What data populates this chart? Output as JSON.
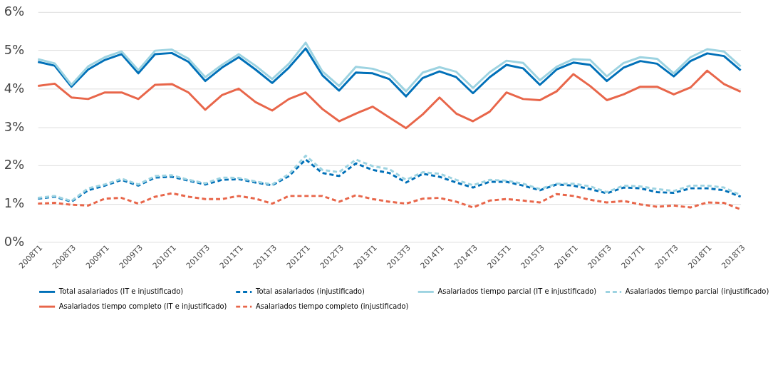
{
  "chart_data": {
    "type": "line",
    "categories": [
      "2008T1",
      null,
      "2008T3",
      null,
      "2009T1",
      null,
      "2009T3",
      null,
      "2010T1",
      null,
      "2010T3",
      null,
      "2011T1",
      null,
      "2011T3",
      null,
      "2012T1",
      null,
      "2012T3",
      null,
      "2013T1",
      null,
      "2013T3",
      null,
      "2014T1",
      null,
      "2014T3",
      null,
      "2015T1",
      null,
      "2015T3",
      null,
      "2016T1",
      null,
      "2016T3",
      null,
      "2017T1",
      null,
      "2017T3",
      null,
      "2018T1",
      null,
      "2018T3"
    ],
    "series": [
      {
        "name": "Total asalariados (IT e injustificado)",
        "color": "#0070b8",
        "line_style": "solid",
        "values": [
          4.7,
          4.6,
          4.05,
          4.5,
          4.75,
          4.9,
          4.4,
          4.9,
          4.93,
          4.7,
          4.2,
          4.55,
          4.82,
          4.5,
          4.15,
          4.55,
          5.05,
          4.35,
          3.95,
          4.42,
          4.4,
          4.25,
          3.8,
          4.28,
          4.45,
          4.3,
          3.88,
          4.3,
          4.62,
          4.53,
          4.1,
          4.5,
          4.68,
          4.62,
          4.2,
          4.55,
          4.72,
          4.65,
          4.32,
          4.72,
          4.92,
          4.85,
          4.48
        ]
      },
      {
        "name": "Total asalariados (injustificado)",
        "color": "#0070b8",
        "line_style": "dashed",
        "values": [
          1.13,
          1.18,
          1.05,
          1.35,
          1.47,
          1.62,
          1.47,
          1.68,
          1.7,
          1.6,
          1.5,
          1.62,
          1.64,
          1.55,
          1.48,
          1.72,
          2.15,
          1.8,
          1.72,
          2.05,
          1.88,
          1.8,
          1.55,
          1.78,
          1.7,
          1.55,
          1.42,
          1.57,
          1.57,
          1.47,
          1.35,
          1.5,
          1.47,
          1.38,
          1.27,
          1.42,
          1.4,
          1.3,
          1.28,
          1.4,
          1.4,
          1.35,
          1.18
        ]
      },
      {
        "name": "Asalariados tiempo parcial (IT e injustificado)",
        "color": "#9dd3e1",
        "line_style": "solid",
        "values": [
          4.77,
          4.66,
          4.1,
          4.58,
          4.82,
          4.97,
          4.48,
          4.99,
          5.02,
          4.78,
          4.3,
          4.62,
          4.9,
          4.6,
          4.25,
          4.65,
          5.2,
          4.45,
          4.07,
          4.57,
          4.52,
          4.38,
          3.93,
          4.42,
          4.56,
          4.44,
          4.02,
          4.43,
          4.73,
          4.67,
          4.22,
          4.57,
          4.77,
          4.75,
          4.32,
          4.67,
          4.82,
          4.78,
          4.4,
          4.82,
          5.03,
          4.97,
          4.58
        ]
      },
      {
        "name": "Asalariados tiempo parcial (injustificado)",
        "color": "#9dd3e1",
        "line_style": "dashed",
        "values": [
          1.15,
          1.2,
          1.07,
          1.4,
          1.5,
          1.65,
          1.5,
          1.72,
          1.74,
          1.62,
          1.53,
          1.68,
          1.67,
          1.58,
          1.5,
          1.77,
          2.25,
          1.88,
          1.82,
          2.15,
          1.98,
          1.9,
          1.62,
          1.82,
          1.78,
          1.62,
          1.48,
          1.62,
          1.6,
          1.52,
          1.38,
          1.52,
          1.52,
          1.45,
          1.3,
          1.47,
          1.45,
          1.38,
          1.33,
          1.47,
          1.47,
          1.42,
          1.22
        ]
      },
      {
        "name": "Asalariados tiempo completo (IT e injustificado)",
        "color": "#e8664a",
        "line_style": "solid",
        "values": [
          4.07,
          4.13,
          3.77,
          3.73,
          3.9,
          3.9,
          3.73,
          4.1,
          4.12,
          3.9,
          3.45,
          3.83,
          4.0,
          3.65,
          3.43,
          3.73,
          3.9,
          3.47,
          3.15,
          3.35,
          3.53,
          3.25,
          2.97,
          3.33,
          3.77,
          3.35,
          3.15,
          3.4,
          3.9,
          3.73,
          3.7,
          3.93,
          4.38,
          4.07,
          3.7,
          3.85,
          4.05,
          4.05,
          3.85,
          4.03,
          4.47,
          4.12,
          3.92
        ]
      },
      {
        "name": "Asalariados tiempo completo (injustificado)",
        "color": "#e8664a",
        "line_style": "dashed",
        "values": [
          1.0,
          1.02,
          0.97,
          0.95,
          1.13,
          1.15,
          1.0,
          1.18,
          1.27,
          1.18,
          1.12,
          1.12,
          1.2,
          1.13,
          1.0,
          1.2,
          1.2,
          1.2,
          1.05,
          1.22,
          1.12,
          1.05,
          1.0,
          1.13,
          1.15,
          1.05,
          0.9,
          1.08,
          1.12,
          1.08,
          1.03,
          1.25,
          1.2,
          1.1,
          1.03,
          1.07,
          0.98,
          0.92,
          0.95,
          0.9,
          1.03,
          1.02,
          0.85
        ]
      }
    ],
    "ylim": [
      0,
      6
    ],
    "yticks": [
      {
        "value": 0,
        "label": "0%"
      },
      {
        "value": 1,
        "label": "1%"
      },
      {
        "value": 2,
        "label": "2%"
      },
      {
        "value": 3,
        "label": "3%"
      },
      {
        "value": 4,
        "label": "4%"
      },
      {
        "value": 5,
        "label": "5%"
      },
      {
        "value": 6,
        "label": "6%"
      }
    ],
    "grid": "y",
    "legend": "bottom",
    "marker": "none"
  }
}
